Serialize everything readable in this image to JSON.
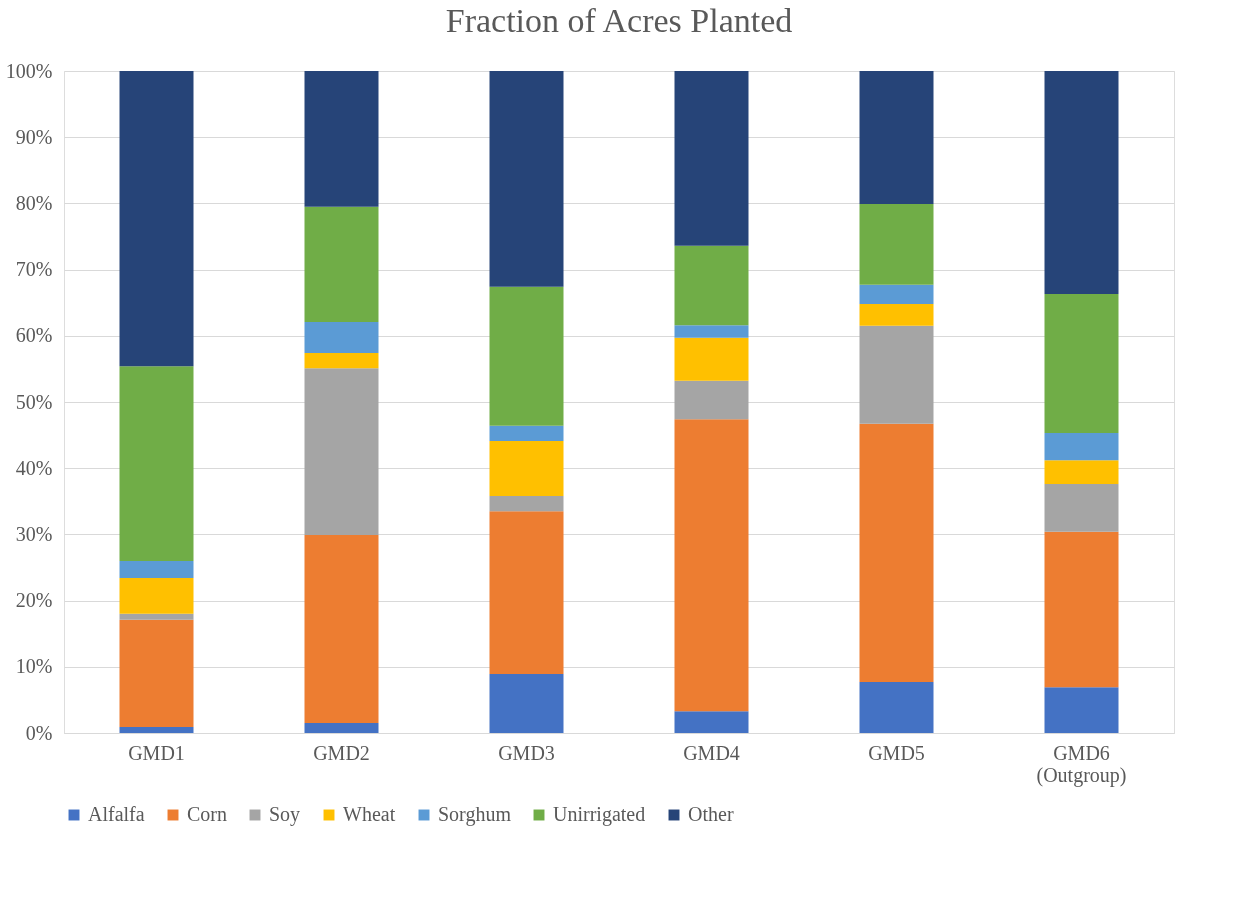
{
  "chart_data": {
    "type": "bar",
    "title": "Fraction of Acres Planted",
    "stacked": true,
    "categories": [
      "GMD1",
      "GMD2",
      "GMD3",
      "GMD4",
      "GMD5",
      "GMD6 (Outgroup)"
    ],
    "series": [
      {
        "name": "Alfalfa",
        "color": "#4472c4",
        "values": [
          0.9,
          1.5,
          8.9,
          3.3,
          7.7,
          6.9
        ]
      },
      {
        "name": "Corn",
        "color": "#ed7d31",
        "values": [
          16.2,
          28.4,
          24.6,
          44.1,
          39.0,
          23.5
        ]
      },
      {
        "name": "Soy",
        "color": "#a5a5a5",
        "values": [
          0.9,
          25.2,
          2.3,
          5.8,
          14.8,
          7.2
        ]
      },
      {
        "name": "Wheat",
        "color": "#ffc000",
        "values": [
          5.4,
          2.3,
          8.3,
          6.5,
          3.3,
          3.6
        ]
      },
      {
        "name": "Sorghum",
        "color": "#5b9bd5",
        "values": [
          2.6,
          4.7,
          2.3,
          1.9,
          2.9,
          4.1
        ]
      },
      {
        "name": "Unirrigated",
        "color": "#70ad47",
        "values": [
          29.4,
          17.4,
          21.0,
          12.0,
          12.2,
          21.0
        ]
      },
      {
        "name": "Other",
        "color": "#264478",
        "values": [
          44.6,
          20.5,
          32.6,
          26.4,
          20.1,
          33.7
        ]
      }
    ],
    "ylim": [
      0,
      100
    ],
    "yticks": [
      {
        "value": 0,
        "label": "0%"
      },
      {
        "value": 10,
        "label": "10%"
      },
      {
        "value": 20,
        "label": "20%"
      },
      {
        "value": 30,
        "label": "30%"
      },
      {
        "value": 40,
        "label": "40%"
      },
      {
        "value": 50,
        "label": "50%"
      },
      {
        "value": 60,
        "label": "60%"
      },
      {
        "value": 70,
        "label": "70%"
      },
      {
        "value": 80,
        "label": "80%"
      },
      {
        "value": 90,
        "label": "90%"
      },
      {
        "value": 100,
        "label": "100%"
      }
    ],
    "grid": "y",
    "legend": "bottom"
  }
}
